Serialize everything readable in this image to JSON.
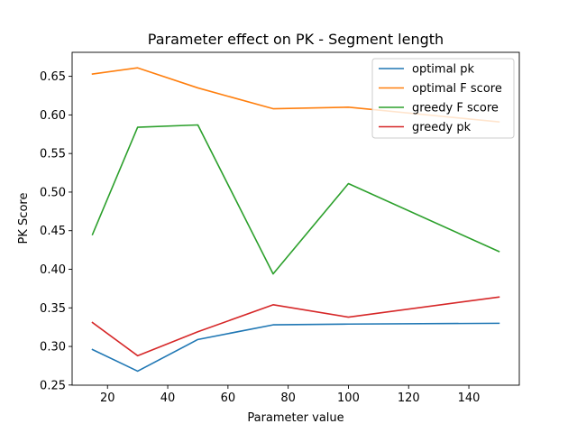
{
  "chart_data": {
    "type": "line",
    "title": "Parameter effect on PK - Segment length",
    "xlabel": "Parameter value",
    "ylabel": "PK Score",
    "xlim": [
      8.25,
      156.75
    ],
    "ylim": [
      0.2498,
      0.6811
    ],
    "xticks": [
      20,
      40,
      60,
      80,
      100,
      120,
      140
    ],
    "xtick_labels": [
      "20",
      "40",
      "60",
      "80",
      "100",
      "120",
      "140"
    ],
    "yticks": [
      0.25,
      0.3,
      0.35,
      0.4,
      0.45,
      0.5,
      0.55,
      0.6,
      0.65
    ],
    "ytick_labels": [
      "0.25",
      "0.30",
      "0.35",
      "0.40",
      "0.45",
      "0.50",
      "0.55",
      "0.60",
      "0.65"
    ],
    "x": [
      15,
      30,
      50,
      75,
      100,
      150
    ],
    "series": [
      {
        "name": "optimal pk",
        "color": "#1f77b4",
        "values": [
          0.296,
          0.268,
          0.309,
          0.328,
          0.329,
          0.33
        ]
      },
      {
        "name": "optimal F score",
        "color": "#ff7f0e",
        "values": [
          0.653,
          0.661,
          0.635,
          0.608,
          0.61,
          0.591
        ]
      },
      {
        "name": "greedy F score",
        "color": "#2ca02c",
        "values": [
          0.445,
          0.584,
          0.587,
          0.394,
          0.511,
          0.423
        ]
      },
      {
        "name": "greedy pk",
        "color": "#d62728",
        "values": [
          0.331,
          0.288,
          0.319,
          0.354,
          0.338,
          0.364
        ]
      }
    ],
    "legend_position": "top-right",
    "grid": false
  }
}
